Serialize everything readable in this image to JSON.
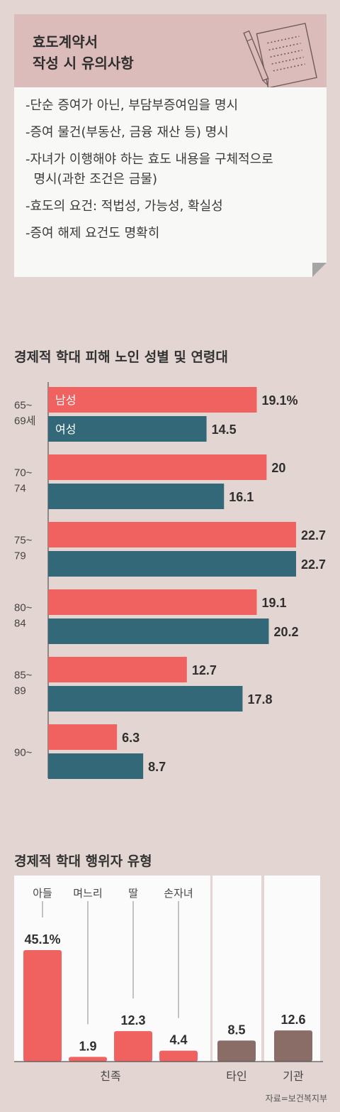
{
  "card": {
    "title_line1": "효도계약서",
    "title_line2": "작성 시 유의사항",
    "tips": [
      "-단순 증여가 아닌, 부담부증여임을 명시",
      "-증여 물건(부동산, 금융 재산 등) 명시",
      "-자녀가 이행해야 하는 효도 내용을 구체적으로",
      "  명시(과한 조건은 금물)",
      "-효도의 요건: 적법성, 가능성, 확실성",
      "-증여 해제 요건도 명확히"
    ],
    "icon": "memo-pencil-icon"
  },
  "chart_data": [
    {
      "type": "bar",
      "orientation": "horizontal",
      "title": "경제적 학대 피해 노인 성별 및 연령대",
      "categories": [
        [
          "65~",
          "69세"
        ],
        [
          "70~",
          "74"
        ],
        [
          "75~",
          "79"
        ],
        [
          "80~",
          "84"
        ],
        [
          "85~",
          "89"
        ],
        [
          "90~"
        ]
      ],
      "series": [
        {
          "name": "남성",
          "color": "#f0625f",
          "values": [
            19.1,
            20,
            22.7,
            19.1,
            12.7,
            6.3
          ],
          "labels": [
            "19.1%",
            "20",
            "22.7",
            "19.1",
            "12.7",
            "6.3"
          ]
        },
        {
          "name": "여성",
          "color": "#336878",
          "values": [
            14.5,
            16.1,
            22.7,
            20.2,
            17.8,
            8.7
          ],
          "labels": [
            "14.5",
            "16.1",
            "22.7",
            "20.2",
            "17.8",
            "8.7"
          ]
        }
      ],
      "xlim": [
        0,
        22.7
      ],
      "legend": "inside-first-bars"
    },
    {
      "type": "bar",
      "title": "경제적 학대 행위자 유형",
      "categories": [
        "아들",
        "며느리",
        "딸",
        "손자녀",
        "타인",
        "기관"
      ],
      "values": [
        45.1,
        1.9,
        12.3,
        4.4,
        8.5,
        12.6
      ],
      "labels": [
        "45.1%",
        "1.9",
        "12.3",
        "4.4",
        "8.5",
        "12.6"
      ],
      "group_labels": [
        "친족",
        "타인",
        "기관"
      ],
      "colors": {
        "kin": "#f0625f",
        "other": "#8b6d68"
      },
      "ylim": [
        0,
        45.1
      ]
    }
  ],
  "source": "자료=보건복지부"
}
